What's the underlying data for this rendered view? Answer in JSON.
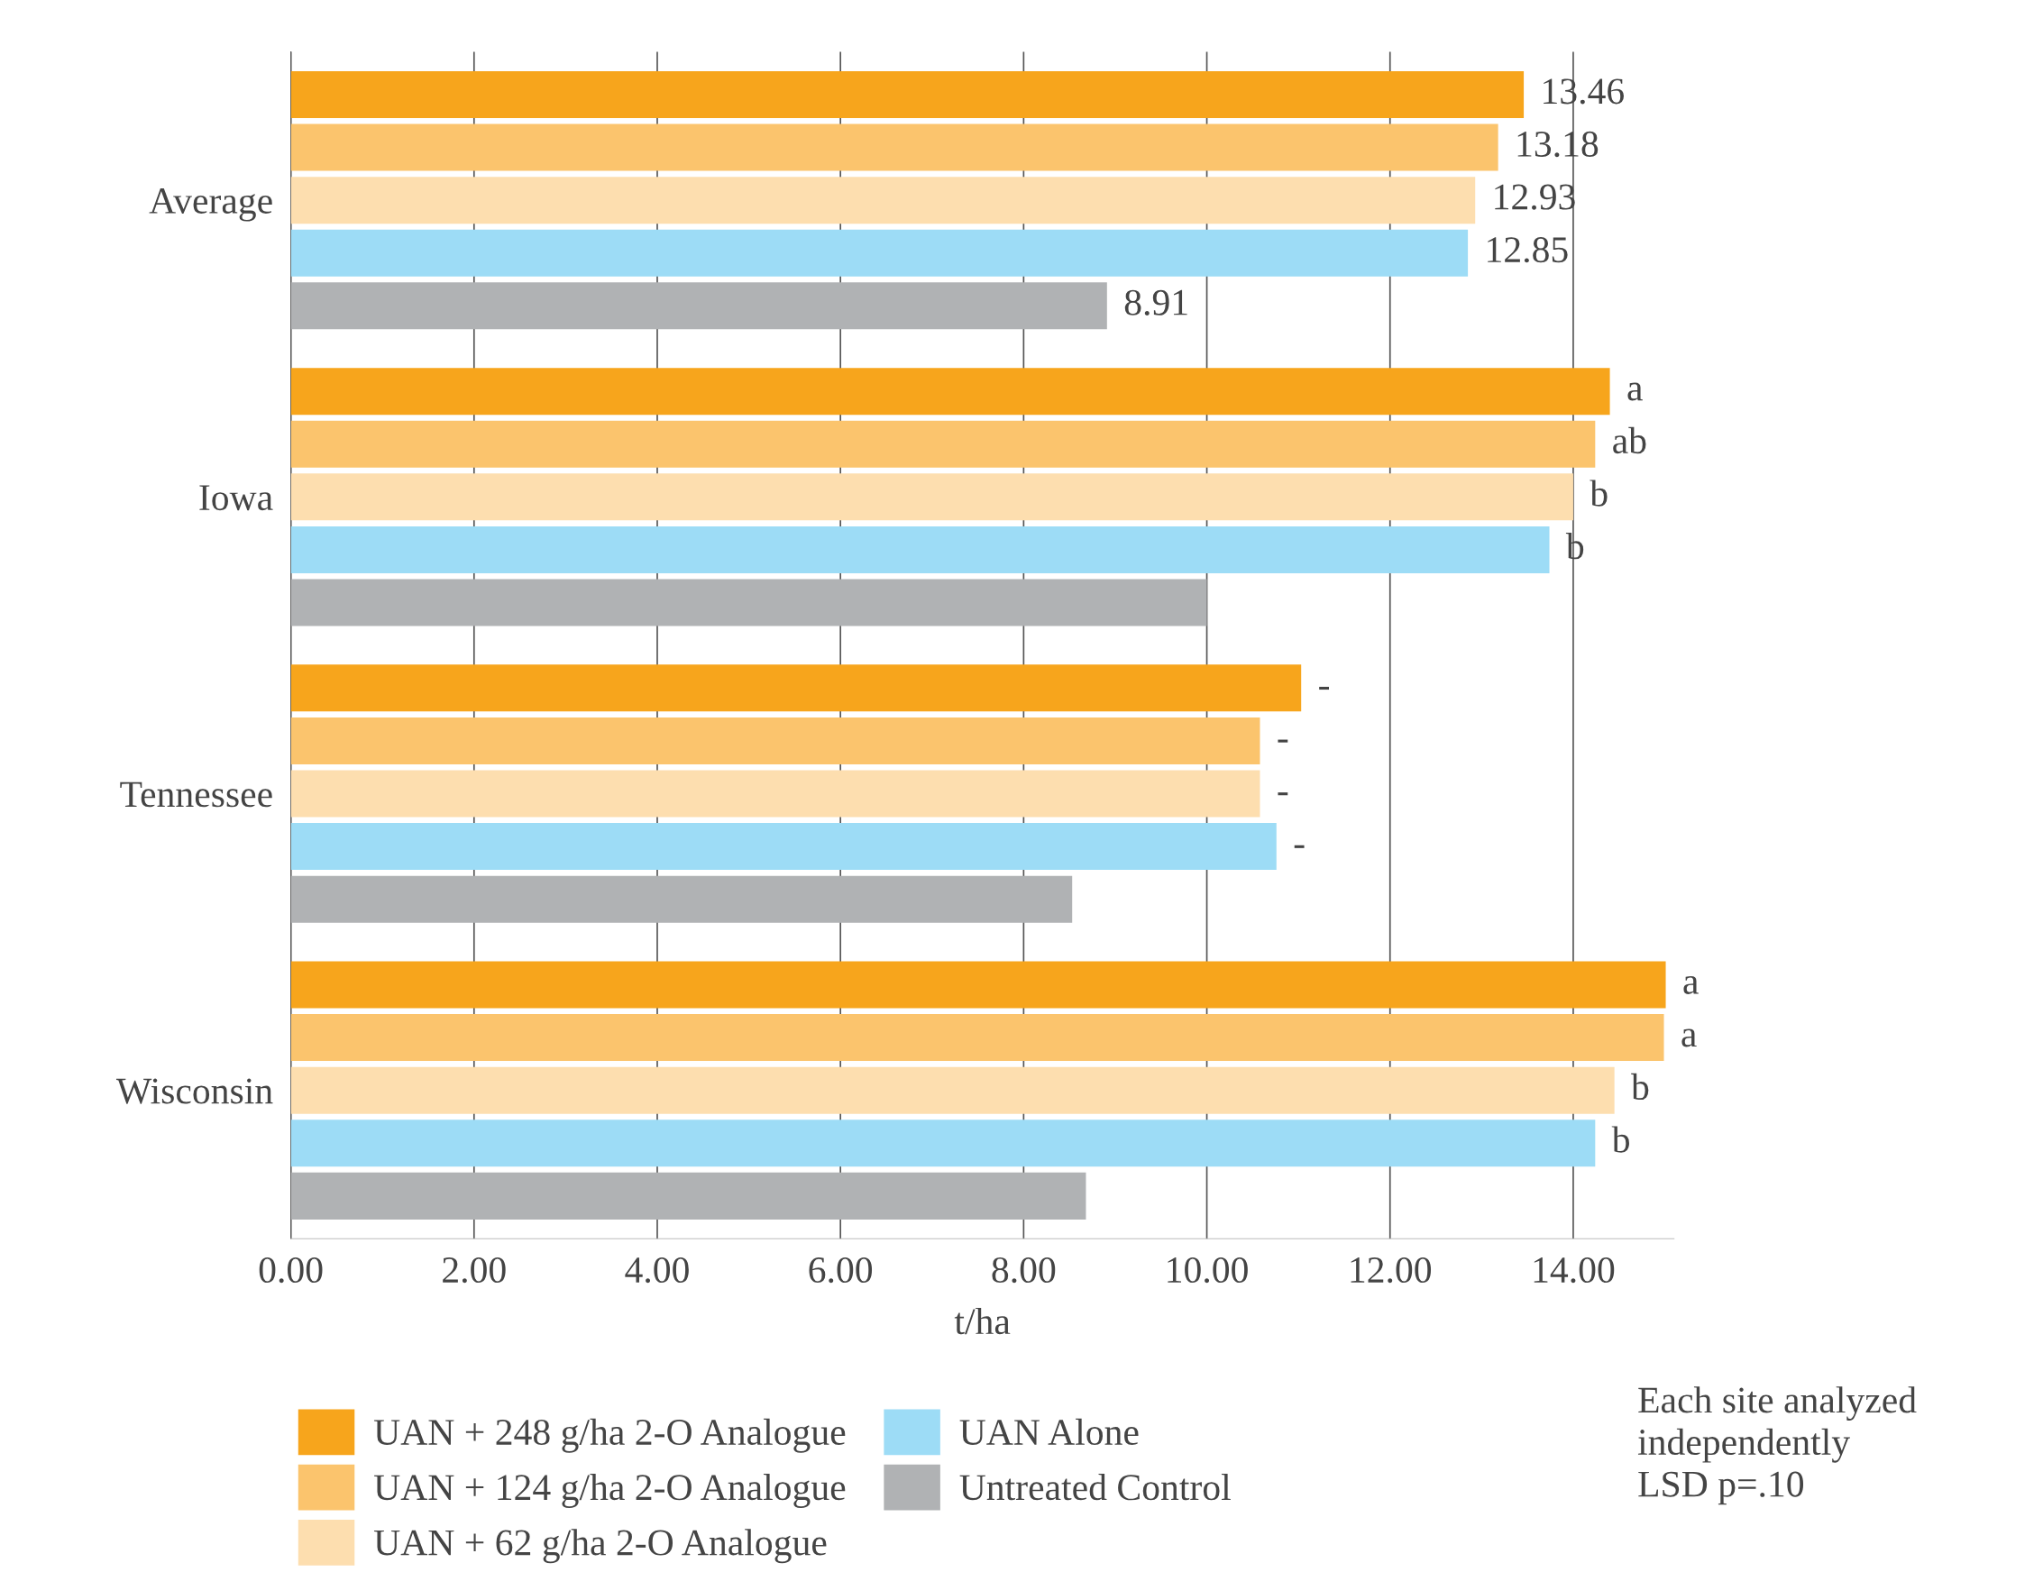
{
  "chart_data": {
    "type": "bar",
    "orientation": "horizontal",
    "xlabel": "t/ha",
    "categories": [
      "Average",
      "Iowa",
      "Tennessee",
      "Wisconsin"
    ],
    "series": [
      {
        "name": "UAN + 248 g/ha 2-O Analogue",
        "color": "#f7a51c",
        "values": [
          13.46,
          14.4,
          11.03,
          15.01
        ],
        "value_labels": [
          "13.46",
          "a",
          "-",
          "a"
        ]
      },
      {
        "name": "UAN + 124 g/ha 2-O Analogue",
        "color": "#fbc46d",
        "values": [
          13.18,
          14.24,
          10.58,
          14.99
        ],
        "value_labels": [
          "13.18",
          "ab",
          "-",
          "a"
        ]
      },
      {
        "name": "UAN + 62 g/ha 2-O Analogue",
        "color": "#fddeaf",
        "values": [
          12.93,
          14.0,
          10.58,
          14.45
        ],
        "value_labels": [
          "12.93",
          "b",
          "-",
          "b"
        ]
      },
      {
        "name": "UAN Alone",
        "color": "#9ddcf6",
        "values": [
          12.85,
          13.74,
          10.76,
          14.24
        ],
        "value_labels": [
          "12.85",
          "b",
          "-",
          "b"
        ]
      },
      {
        "name": "Untreated Control",
        "color": "#b0b2b4",
        "values": [
          8.91,
          10.0,
          8.53,
          8.68
        ],
        "value_labels": [
          "8.91",
          null,
          null,
          null
        ]
      }
    ],
    "xlim": [
      0,
      15.1
    ],
    "xticks": [
      {
        "value": 0,
        "label": "0.00"
      },
      {
        "value": 2,
        "label": "2.00"
      },
      {
        "value": 4,
        "label": "4.00"
      },
      {
        "value": 6,
        "label": "6.00"
      },
      {
        "value": 8,
        "label": "8.00"
      },
      {
        "value": 10,
        "label": "10.00"
      },
      {
        "value": 12,
        "label": "12.00"
      },
      {
        "value": 14,
        "label": "14.00"
      }
    ],
    "grid": "x",
    "legend": "bottom",
    "annotations": [
      "Each site analyzed\nindependently\nLSD p=.10"
    ]
  }
}
